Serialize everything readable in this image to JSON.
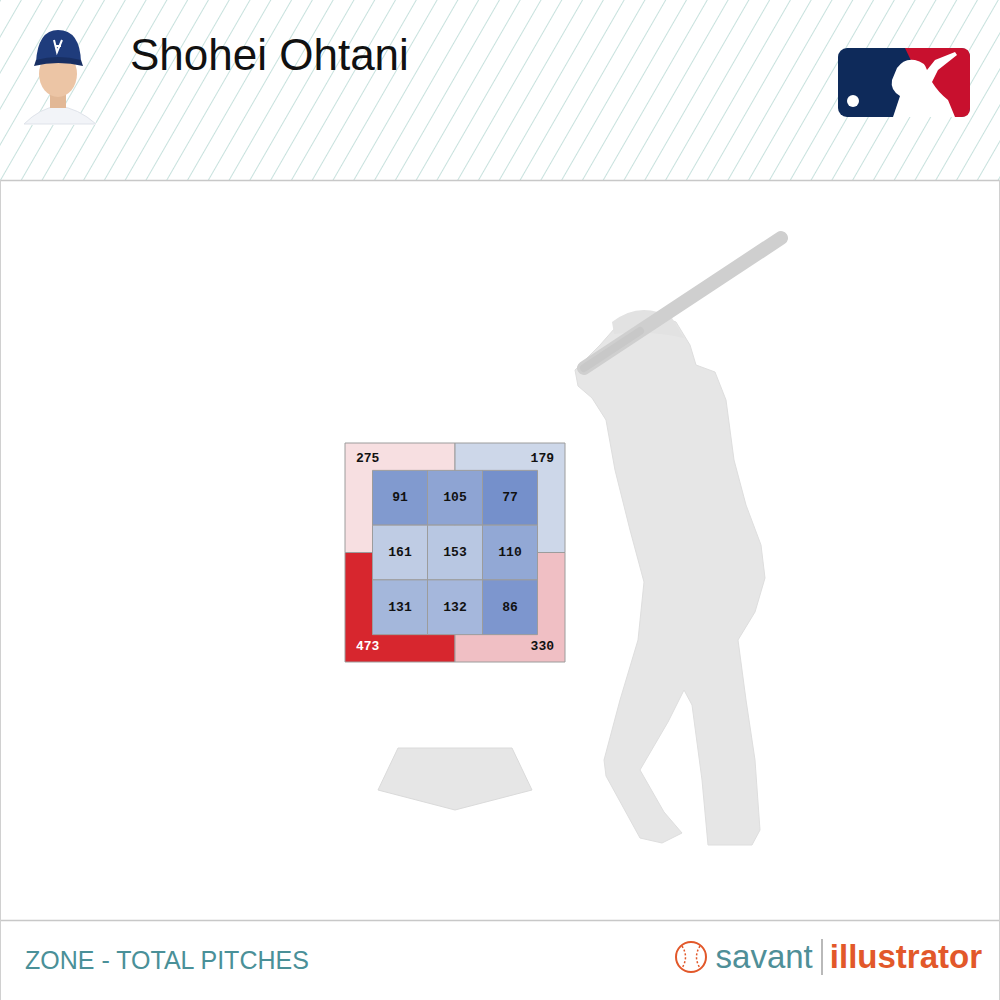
{
  "chart_data": {
    "type": "heatmap",
    "title": "Shohei Ohtani",
    "subtitle": "ZONE - TOTAL PITCHES",
    "annotations": [
      "savant",
      "illustrator"
    ],
    "cells": [
      [
        91,
        105,
        77
      ],
      [
        161,
        153,
        110
      ],
      [
        131,
        132,
        86
      ]
    ],
    "outer": {
      "top_left": 275,
      "top_right": 179,
      "bottom_left": 473,
      "bottom_right": 330
    },
    "data_labels": true,
    "tick_labels": false
  }
}
